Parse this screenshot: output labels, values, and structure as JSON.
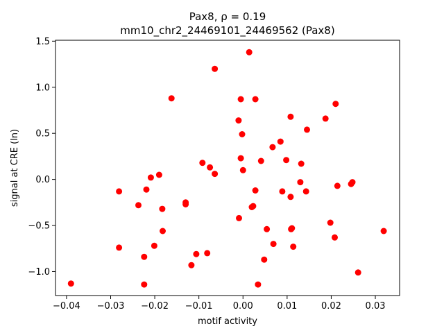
{
  "chart_data": {
    "type": "scatter",
    "title_line1": "Pax8, ρ = 0.19",
    "title_line2": "mm10_chr2_24469101_24469562 (Pax8)",
    "xlabel": "motif activity",
    "ylabel": "signal at CRE (ln)",
    "xlim": [
      -0.0425,
      0.0355
    ],
    "ylim": [
      -1.26,
      1.51
    ],
    "xticks": [
      -0.04,
      -0.03,
      -0.02,
      -0.01,
      0.0,
      0.01,
      0.02,
      0.03
    ],
    "xtick_labels": [
      "−0.04",
      "−0.03",
      "−0.02",
      "−0.01",
      "0.00",
      "0.01",
      "0.02",
      "0.03"
    ],
    "yticks": [
      -1.0,
      -0.5,
      0.0,
      0.5,
      1.0,
      1.5
    ],
    "ytick_labels": [
      "−1.0",
      "−0.5",
      "0.0",
      "0.5",
      "1.0",
      "1.5"
    ],
    "grid": false,
    "point_color": "#ff0000",
    "points": [
      {
        "x": -0.039,
        "y": -1.13
      },
      {
        "x": -0.0281,
        "y": -0.13
      },
      {
        "x": -0.0281,
        "y": -0.74
      },
      {
        "x": -0.0237,
        "y": -0.28
      },
      {
        "x": -0.0224,
        "y": -1.14
      },
      {
        "x": -0.0224,
        "y": -0.84
      },
      {
        "x": -0.0219,
        "y": -0.11
      },
      {
        "x": -0.0209,
        "y": 0.02
      },
      {
        "x": -0.0201,
        "y": -0.72
      },
      {
        "x": -0.019,
        "y": 0.05
      },
      {
        "x": -0.0183,
        "y": -0.32
      },
      {
        "x": -0.0182,
        "y": -0.56
      },
      {
        "x": -0.0162,
        "y": 0.88
      },
      {
        "x": -0.013,
        "y": -0.25
      },
      {
        "x": -0.013,
        "y": -0.27
      },
      {
        "x": -0.0117,
        "y": -0.93
      },
      {
        "x": -0.0106,
        "y": -0.81
      },
      {
        "x": -0.0092,
        "y": 0.18
      },
      {
        "x": -0.0081,
        "y": -0.8
      },
      {
        "x": -0.0075,
        "y": 0.13
      },
      {
        "x": -0.0064,
        "y": 0.06
      },
      {
        "x": -0.0064,
        "y": 1.2
      },
      {
        "x": -0.001,
        "y": 0.64
      },
      {
        "x": -0.0009,
        "y": -0.42
      },
      {
        "x": -0.0005,
        "y": 0.87
      },
      {
        "x": -0.0005,
        "y": 0.23
      },
      {
        "x": -0.0002,
        "y": 0.49
      },
      {
        "x": 0.0,
        "y": 0.1
      },
      {
        "x": 0.0014,
        "y": 1.38
      },
      {
        "x": 0.002,
        "y": -0.3
      },
      {
        "x": 0.0023,
        "y": -0.29
      },
      {
        "x": 0.0028,
        "y": 0.87
      },
      {
        "x": 0.0028,
        "y": -0.12
      },
      {
        "x": 0.0034,
        "y": -1.14
      },
      {
        "x": 0.0041,
        "y": 0.2
      },
      {
        "x": 0.0048,
        "y": -0.87
      },
      {
        "x": 0.0054,
        "y": -0.54
      },
      {
        "x": 0.0067,
        "y": 0.35
      },
      {
        "x": 0.0069,
        "y": -0.7
      },
      {
        "x": 0.0085,
        "y": 0.41
      },
      {
        "x": 0.0089,
        "y": -0.13
      },
      {
        "x": 0.0098,
        "y": 0.21
      },
      {
        "x": 0.0108,
        "y": 0.68
      },
      {
        "x": 0.0108,
        "y": -0.19
      },
      {
        "x": 0.0109,
        "y": -0.54
      },
      {
        "x": 0.0111,
        "y": -0.53
      },
      {
        "x": 0.0114,
        "y": -0.73
      },
      {
        "x": 0.013,
        "y": -0.03
      },
      {
        "x": 0.0132,
        "y": 0.17
      },
      {
        "x": 0.0143,
        "y": -0.13
      },
      {
        "x": 0.0145,
        "y": 0.54
      },
      {
        "x": 0.0187,
        "y": 0.66
      },
      {
        "x": 0.0198,
        "y": -0.47
      },
      {
        "x": 0.0208,
        "y": -0.63
      },
      {
        "x": 0.021,
        "y": 0.82
      },
      {
        "x": 0.0214,
        "y": -0.07
      },
      {
        "x": 0.0245,
        "y": -0.05
      },
      {
        "x": 0.0248,
        "y": -0.03
      },
      {
        "x": 0.0261,
        "y": -1.01
      },
      {
        "x": 0.0319,
        "y": -0.56
      }
    ]
  }
}
